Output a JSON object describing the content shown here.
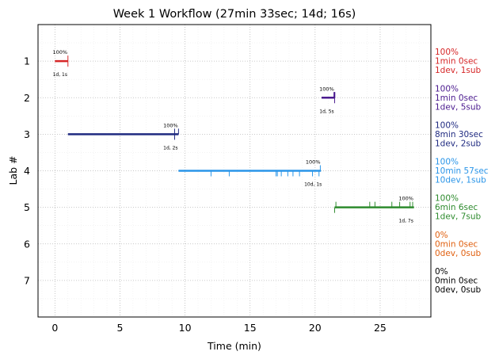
{
  "chart_data": {
    "type": "timeline",
    "title": "Week 1 Workflow (27min 33sec; 14d; 16s)",
    "xlabel": "Time (min)",
    "ylabel": "Lab #",
    "xlim": [
      -1.3,
      28.9
    ],
    "ylim": [
      8,
      0
    ],
    "xticks": [
      0,
      5,
      10,
      15,
      20,
      25
    ],
    "yticks": [
      1,
      2,
      3,
      4,
      5,
      6,
      7
    ],
    "grid": "dotted",
    "labs": [
      {
        "lab": 1,
        "color": "#d62728",
        "start": 0,
        "end": 1.0,
        "dev_ticks": [
          1.0
        ],
        "sub_ticks": [
          1.0
        ],
        "pct_label": "100%",
        "count_label": "1d, 1s",
        "side": [
          "100%",
          "1min 0sec",
          "1dev, 1sub"
        ]
      },
      {
        "lab": 2,
        "color": "#4b1b8f",
        "start": 20.5,
        "end": 21.5,
        "dev_ticks": [
          21.5
        ],
        "sub_ticks": [
          21.45,
          21.47,
          21.49,
          21.5,
          21.52
        ],
        "pct_label": "100%",
        "count_label": "1d, 5s",
        "side": [
          "100%",
          "1min 0sec",
          "1dev, 5sub"
        ]
      },
      {
        "lab": 3,
        "color": "#1f2a80",
        "start": 1.0,
        "end": 9.5,
        "dev_ticks": [
          9.2
        ],
        "sub_ticks": [
          9.2,
          9.5
        ],
        "pct_label": "100%",
        "count_label": "1d, 2s",
        "side": [
          "100%",
          "8min 30sec",
          "1dev, 2sub"
        ]
      },
      {
        "lab": 4,
        "color": "#2a95e8",
        "start": 9.5,
        "end": 20.45,
        "dev_ticks": [
          12.0,
          13.4,
          17.0,
          17.1,
          17.4,
          17.9,
          18.3,
          18.8,
          19.8,
          20.3
        ],
        "sub_ticks": [
          20.4
        ],
        "pct_label": "100%",
        "count_label": "10d, 1s",
        "side": [
          "100%",
          "10min 57sec",
          "10dev, 1sub"
        ]
      },
      {
        "lab": 5,
        "color": "#2e8b2e",
        "start": 21.5,
        "end": 27.6,
        "dev_ticks": [
          21.5
        ],
        "sub_ticks": [
          21.6,
          24.2,
          24.6,
          25.9,
          26.5,
          27.3,
          27.5
        ],
        "pct_label": "100%",
        "count_label": "1d, 7s",
        "side": [
          "100%",
          "6min 6sec",
          "1dev, 7sub"
        ]
      },
      {
        "lab": 6,
        "color": "#e06010",
        "start": null,
        "end": null,
        "dev_ticks": [],
        "sub_ticks": [],
        "pct_label": "",
        "count_label": "",
        "side": [
          "0%",
          "0min 0sec",
          "0dev, 0sub"
        ]
      },
      {
        "lab": 7,
        "color": "#000000",
        "start": null,
        "end": null,
        "dev_ticks": [],
        "sub_ticks": [],
        "pct_label": "",
        "count_label": "",
        "side": [
          "0%",
          "0min 0sec",
          "0dev, 0sub"
        ]
      }
    ]
  }
}
